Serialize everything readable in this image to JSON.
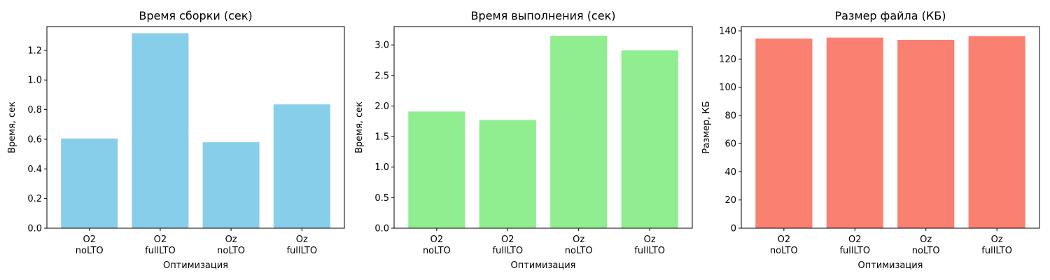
{
  "chart_data": [
    {
      "type": "bar",
      "title": "Время сборки (сек)",
      "xlabel": "Оптимизация",
      "ylabel": "Время, сек",
      "categories": [
        "O2\nnoLTO",
        "O2\nfullLTO",
        "Oz\nnoLTO",
        "Oz\nfullLTO"
      ],
      "values": [
        0.605,
        1.315,
        0.58,
        0.835
      ],
      "ylim": [
        0,
        1.36
      ],
      "yticks": [
        0.0,
        0.2,
        0.4,
        0.6,
        0.8,
        1.0,
        1.2
      ],
      "tick_decimals": 1,
      "color": "#87ceeb",
      "grid": false
    },
    {
      "type": "bar",
      "title": "Время выполнения (сек)",
      "xlabel": "Оптимизация",
      "ylabel": "Время, сек",
      "categories": [
        "O2\nnoLTO",
        "O2\nfullLTO",
        "Oz\nnoLTO",
        "Oz\nfullLTO"
      ],
      "values": [
        1.91,
        1.77,
        3.15,
        2.91
      ],
      "ylim": [
        0,
        3.3
      ],
      "yticks": [
        0.0,
        0.5,
        1.0,
        1.5,
        2.0,
        2.5,
        3.0
      ],
      "tick_decimals": 1,
      "color": "#90ee90",
      "grid": false
    },
    {
      "type": "bar",
      "title": "Размер файла (КБ)",
      "xlabel": "Оптимизация",
      "ylabel": "Размер, КБ",
      "categories": [
        "O2\nnoLTO",
        "O2\nfullLTO",
        "Oz\nnoLTO",
        "Oz\nfullLTO"
      ],
      "values": [
        134.5,
        135.2,
        133.6,
        136.3
      ],
      "ylim": [
        0,
        143
      ],
      "yticks": [
        0,
        20,
        40,
        60,
        80,
        100,
        120,
        140
      ],
      "tick_decimals": 0,
      "color": "#fa8072",
      "grid": false
    }
  ]
}
